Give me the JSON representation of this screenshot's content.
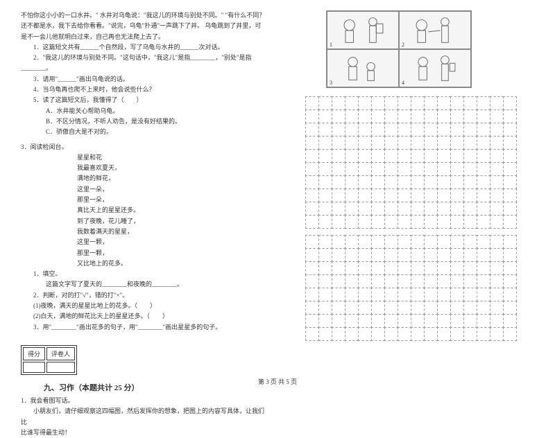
{
  "passage1": {
    "l1": "不怕你这小小的一口水井。\" 水井对乌龟说：\"我这儿的环境与别处不同。\" \"有什么不同？",
    "l2": "还不都是水，我下去给你看看。\"说完，乌龟\"扑通\"一声跳下了井。 乌龟跳到了井里，可",
    "l3": "是不一会儿他就明白过来，自己再也无法爬上去了。",
    "q1": "1．这篇短文共有______个自然段，写了乌龟与水井的______次对话。",
    "q2": "2．\"我这儿的环境与别处不同。\"这句话中，\"我这儿\"是指________，\"别处\"是指",
    "q2b": "________。",
    "q3": "3．请用\"______\"画出乌龟说的话。",
    "q4": "4．当乌龟再也爬不上来时，他会说些什么？",
    "q5": "5．读了这篇短文后，我懂得了（　　）",
    "q5a": "A．水井能关心帮助乌龟。",
    "q5b": "B．不区分情况，不听人劝告，是没有好结果的。",
    "q5c": "C．骄傲自大是不对的。"
  },
  "reading3": {
    "title": "3．阅读检阅台。",
    "poem_title": "星星和花",
    "p1": "我最喜欢夏天，",
    "p2": "满地的鲜花，",
    "p3": "这里一朵，",
    "p4": "那里一朵，",
    "p5": "真比天上的星星还多。",
    "p6": "到了夜晚，花儿睡了，",
    "p7": "我数着满天的星星，",
    "p8": "这里一颗，",
    "p9": "那里一颗，",
    "p10": "又比地上的花多。",
    "q1": "1．填空。",
    "q1a": "这篇文字写了夏天的________和夜晚的________。",
    "q2": "2．判断，对的打\"√\"，错的打\"×\"。",
    "q2a": "(1)夜晚，满天的星星比地上的花多。（　　）",
    "q2b": "(2)白天，满地的鲜花比天上的星星还多。（　　）",
    "q3": "3．用\"________\"画出花多的句子，用\"________\"画出星星多的句子。"
  },
  "score": {
    "h1": "得分",
    "h2": "评卷人"
  },
  "section9": {
    "title": "九、习作（本题共计 25 分）",
    "q1": "1．我会看图写话。",
    "q1a": "小朋友们，请仔细观察这四幅图，然后发挥你的想象，把图上的内容写具体，让我们比",
    "q1b": "比谁写得最生动！"
  },
  "comic_nums": [
    "1",
    "2",
    "3",
    "4"
  ],
  "grid": {
    "cols": 16,
    "rows1": 10,
    "rows2": 8
  },
  "footer": "第 3 页 共 5 页"
}
